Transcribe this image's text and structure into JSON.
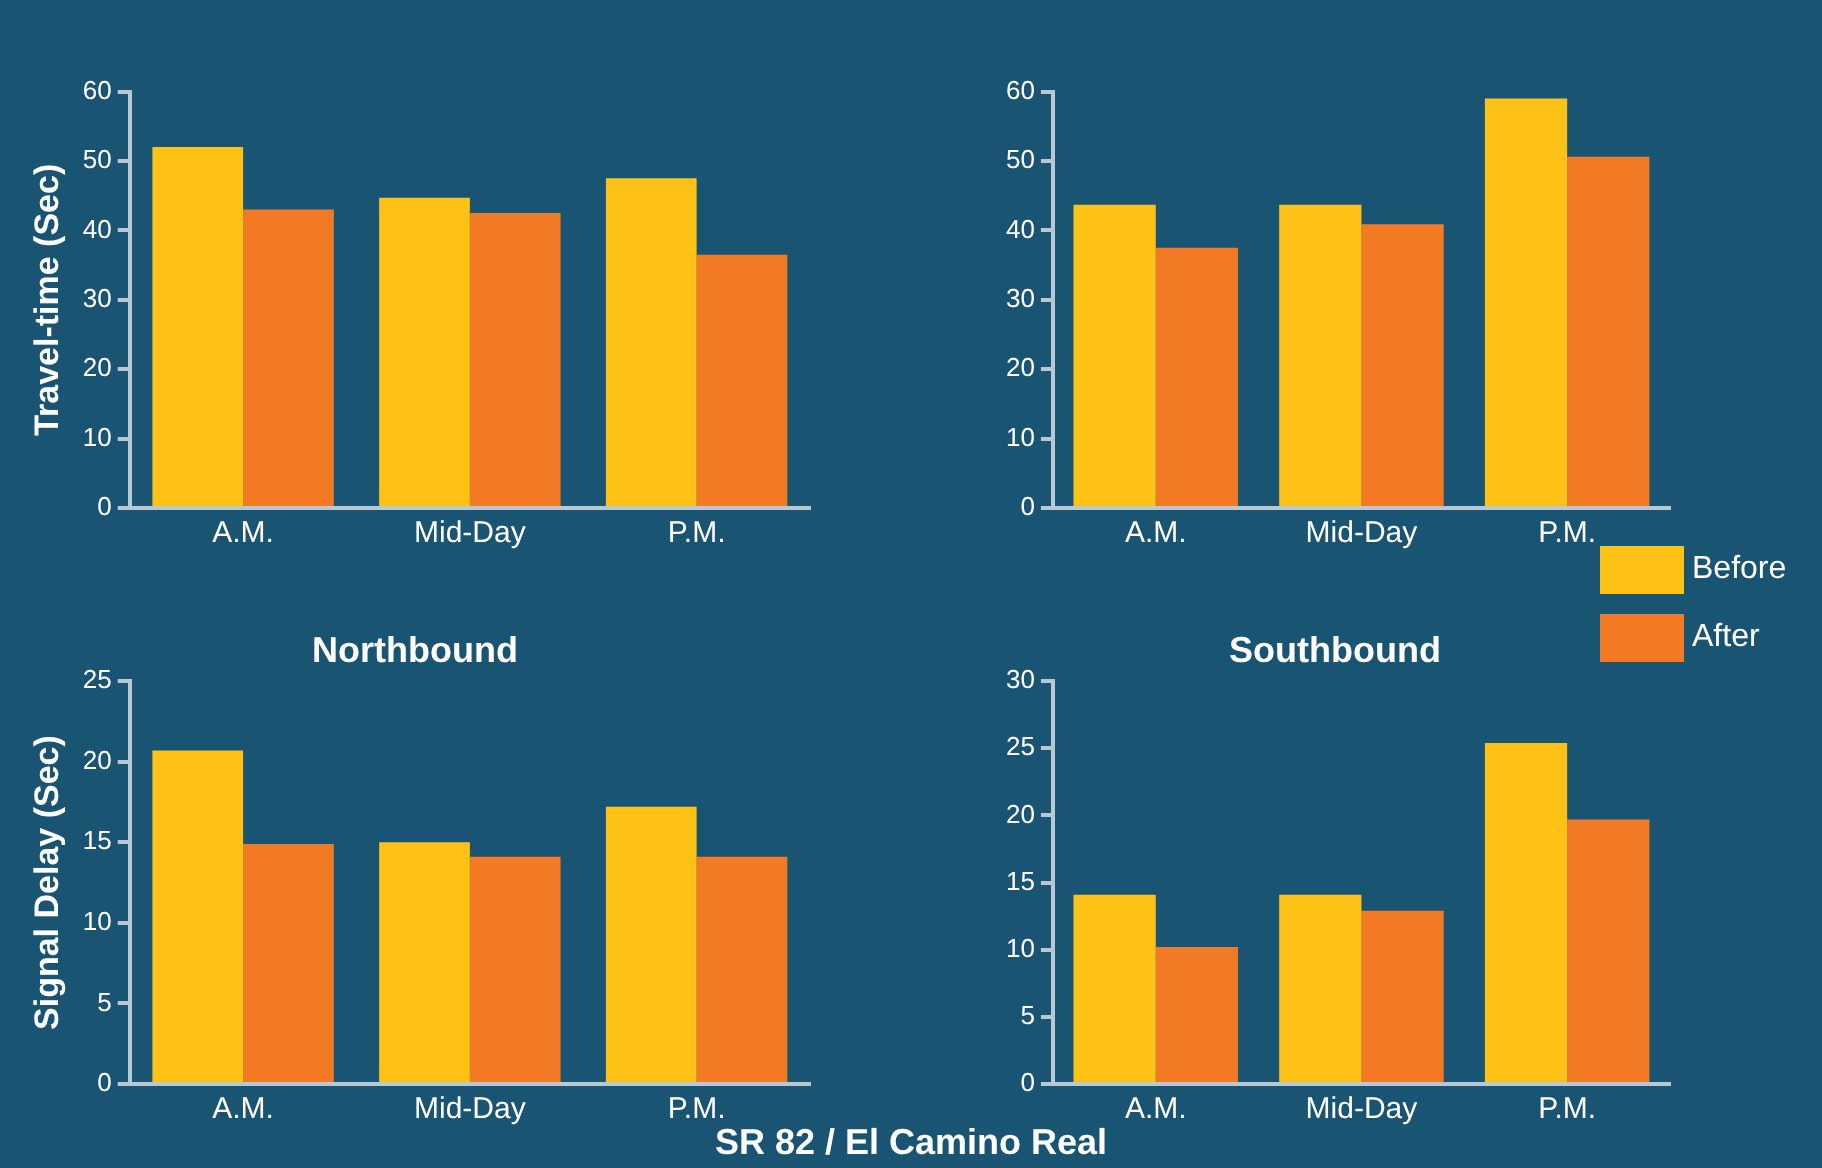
{
  "chart_data": [
    {
      "type": "bar",
      "ylabel": "Travel-time (Sec)",
      "categories": [
        "A.M.",
        "Mid-Day",
        "P.M."
      ],
      "series": [
        {
          "color": "#fec216",
          "values": [
            52,
            44.7,
            47.5
          ]
        },
        {
          "color": "#f37a25",
          "values": [
            43,
            42.5,
            36.5
          ]
        }
      ],
      "ylim": [
        0,
        60
      ],
      "yticks": [
        0,
        10,
        20,
        30,
        40,
        50,
        60
      ],
      "grid": false,
      "legend": false
    },
    {
      "type": "bar",
      "categories": [
        "A.M.",
        "Mid-Day",
        "P.M."
      ],
      "series": [
        {
          "name": "Before",
          "color": "#fec216",
          "values": [
            43.7,
            43.7,
            59
          ]
        },
        {
          "name": "After",
          "color": "#f37a25",
          "values": [
            37.5,
            40.9,
            50.6
          ]
        }
      ],
      "ylim": [
        0,
        60
      ],
      "yticks": [
        0,
        10,
        20,
        30,
        40,
        50,
        60
      ],
      "grid": false,
      "legend": "bottom right"
    },
    {
      "type": "bar",
      "title": "Northbound",
      "ylabel": "Signal Delay (Sec)",
      "xlabel": "SR 82 / El Camino Real",
      "categories": [
        "A.M.",
        "Mid-Day",
        "P.M."
      ],
      "series": [
        {
          "color": "#fec216",
          "values": [
            20.7,
            15,
            17.2
          ]
        },
        {
          "color": "#f37a25",
          "values": [
            14.9,
            14.1,
            14.1
          ]
        }
      ],
      "ylim": [
        0,
        25
      ],
      "yticks": [
        0,
        5,
        10,
        15,
        20,
        25
      ],
      "grid": false,
      "legend": false
    },
    {
      "type": "bar",
      "title": "Southbound",
      "categories": [
        "A.M.",
        "Mid-Day",
        "P.M."
      ],
      "series": [
        {
          "color": "#fec216",
          "values": [
            14.1,
            14.1,
            25.4
          ]
        },
        {
          "color": "#f37a25",
          "values": [
            10.2,
            12.9,
            19.7
          ]
        }
      ],
      "ylim": [
        0,
        30
      ],
      "yticks": [
        0,
        5,
        10,
        15,
        20,
        25,
        30
      ],
      "grid": false,
      "legend": false
    }
  ]
}
